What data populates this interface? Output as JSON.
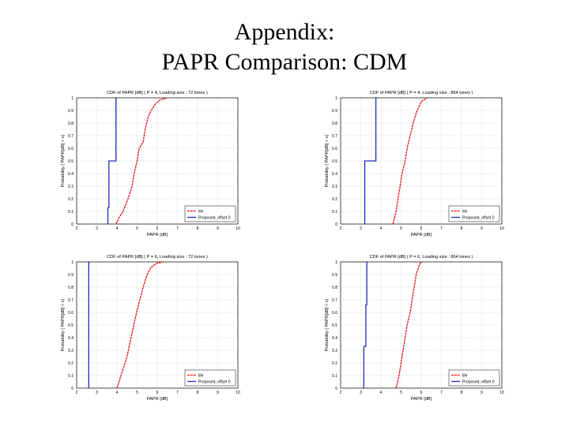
{
  "slide": {
    "title_line1": "Appendix:",
    "title_line2": "PAPR Comparison: CDM"
  },
  "chart_data": [
    {
      "type": "line",
      "title": "CDF of PAPR [dB] ( P = 4, Loading size : 72 tones )",
      "xlabel": "PAPR [dB]",
      "ylabel": "Probability ( PAPR[dB] < x)",
      "xlim": [
        2,
        10
      ],
      "ylim": [
        0,
        1
      ],
      "xticks": [
        2,
        3,
        4,
        5,
        6,
        7,
        8,
        9,
        10
      ],
      "yticks": [
        0,
        0.1,
        0.2,
        0.3,
        0.4,
        0.5,
        0.6,
        0.7,
        0.8,
        0.9,
        1
      ],
      "grid": true,
      "legend": "bottom-right",
      "series": [
        {
          "name": "tile",
          "color": "#e8141b",
          "style": "dashed",
          "x": [
            3.95,
            4.1,
            4.3,
            4.55,
            4.75,
            4.85,
            5.0,
            5.1,
            5.3,
            5.4,
            5.55,
            5.7,
            5.9,
            6.1,
            6.3,
            6.5
          ],
          "y": [
            0.0,
            0.05,
            0.1,
            0.2,
            0.3,
            0.4,
            0.5,
            0.6,
            0.65,
            0.75,
            0.85,
            0.9,
            0.95,
            0.98,
            0.99,
            1.0
          ]
        },
        {
          "name": "Proposed, offset 0",
          "color": "#1f2fb0",
          "style": "solid",
          "x": [
            3.55,
            3.55,
            3.6,
            3.6,
            3.95,
            3.95,
            4.0
          ],
          "y": [
            0.0,
            0.13,
            0.13,
            0.5,
            0.5,
            1.0,
            1.0
          ]
        }
      ]
    },
    {
      "type": "line",
      "title": "CDF of PAPR [dB] ( P = 4, Loading size : 864 tones )",
      "xlabel": "PAPR [dB]",
      "ylabel": "Probability ( PAPR[dB] < x)",
      "xlim": [
        2,
        10
      ],
      "ylim": [
        0,
        1
      ],
      "xticks": [
        2,
        3,
        4,
        5,
        6,
        7,
        8,
        9,
        10
      ],
      "yticks": [
        0,
        0.1,
        0.2,
        0.3,
        0.4,
        0.5,
        0.6,
        0.7,
        0.8,
        0.9,
        1
      ],
      "grid": true,
      "legend": "bottom-right",
      "series": [
        {
          "name": "tile",
          "color": "#e8141b",
          "style": "dashed",
          "x": [
            4.6,
            4.75,
            4.85,
            4.95,
            5.05,
            5.2,
            5.3,
            5.45,
            5.6,
            5.8,
            6.0,
            6.3
          ],
          "y": [
            0.0,
            0.1,
            0.2,
            0.3,
            0.4,
            0.5,
            0.6,
            0.7,
            0.8,
            0.9,
            0.97,
            1.0
          ]
        },
        {
          "name": "Proposed, offset 0",
          "color": "#1f2fb0",
          "style": "solid",
          "x": [
            3.2,
            3.2,
            3.75,
            3.75,
            3.8
          ],
          "y": [
            0.0,
            0.5,
            0.5,
            1.0,
            1.0
          ]
        }
      ]
    },
    {
      "type": "line",
      "title": "CDF of PAPR [dB] ( P = 6, Loading size : 72 tones )",
      "xlabel": "PAPR [dB]",
      "ylabel": "Probability ( PAPR[dB] < x)",
      "xlim": [
        2,
        10
      ],
      "ylim": [
        0,
        1
      ],
      "xticks": [
        2,
        3,
        4,
        5,
        6,
        7,
        8,
        9,
        10
      ],
      "yticks": [
        0,
        0.1,
        0.2,
        0.3,
        0.4,
        0.5,
        0.6,
        0.7,
        0.8,
        0.9,
        1
      ],
      "grid": true,
      "legend": "bottom-right",
      "series": [
        {
          "name": "tile",
          "color": "#e8141b",
          "style": "dashed",
          "x": [
            4.0,
            4.1,
            4.3,
            4.5,
            4.7,
            4.9,
            5.1,
            5.3,
            5.5,
            5.7,
            6.0,
            6.3
          ],
          "y": [
            0.0,
            0.05,
            0.15,
            0.25,
            0.4,
            0.55,
            0.68,
            0.8,
            0.9,
            0.96,
            0.99,
            1.0
          ]
        },
        {
          "name": "Proposed, offset 0",
          "color": "#1f2fb0",
          "style": "solid",
          "x": [
            2.6,
            2.6,
            2.65
          ],
          "y": [
            0.0,
            1.0,
            1.0
          ]
        }
      ]
    },
    {
      "type": "line",
      "title": "CDF of PAPR [dB] ( P = 6, Loading size : 864 tones )",
      "xlabel": "PAPR [dB]",
      "ylabel": "Probability ( PAPR[dB] < x)",
      "xlim": [
        2,
        10
      ],
      "ylim": [
        0,
        1
      ],
      "xticks": [
        2,
        3,
        4,
        5,
        6,
        7,
        8,
        9,
        10
      ],
      "yticks": [
        0,
        0.1,
        0.2,
        0.3,
        0.4,
        0.5,
        0.6,
        0.7,
        0.8,
        0.9,
        1
      ],
      "grid": true,
      "legend": "bottom-right",
      "series": [
        {
          "name": "tile",
          "color": "#e8141b",
          "style": "dashed",
          "x": [
            4.75,
            4.9,
            5.0,
            5.1,
            5.2,
            5.3,
            5.45,
            5.55,
            5.65,
            5.75,
            5.85,
            5.95,
            6.05
          ],
          "y": [
            0.0,
            0.1,
            0.2,
            0.3,
            0.4,
            0.5,
            0.6,
            0.7,
            0.8,
            0.9,
            0.95,
            0.99,
            1.0
          ]
        },
        {
          "name": "Proposed, offset 0",
          "color": "#1f2fb0",
          "style": "solid",
          "x": [
            3.15,
            3.15,
            3.25,
            3.25,
            3.3,
            3.3,
            3.35
          ],
          "y": [
            0.0,
            0.33,
            0.33,
            0.66,
            0.66,
            1.0,
            1.0
          ]
        }
      ]
    }
  ]
}
